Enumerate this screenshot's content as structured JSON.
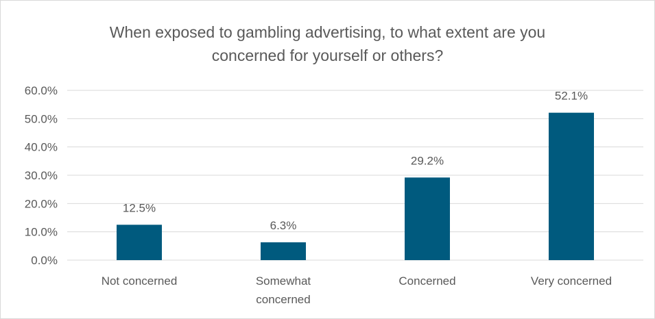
{
  "chart_data": {
    "type": "bar",
    "title_lines": [
      "When exposed to gambling advertising, to what extent are you",
      "concerned for yourself or others?"
    ],
    "categories": [
      [
        "Not concerned"
      ],
      [
        "Somewhat",
        "concerned"
      ],
      [
        "Concerned"
      ],
      [
        "Very concerned"
      ]
    ],
    "values": [
      12.5,
      6.3,
      29.2,
      52.1
    ],
    "data_labels": [
      "12.5%",
      "6.3%",
      "29.2%",
      "52.1%"
    ],
    "y_ticks": [
      "0.0%",
      "10.0%",
      "20.0%",
      "30.0%",
      "40.0%",
      "50.0%",
      "60.0%"
    ],
    "ylim": [
      0,
      60
    ],
    "y_tick_values": [
      0,
      10,
      20,
      30,
      40,
      50,
      60
    ],
    "grid": true,
    "legend": "none",
    "bar_color": "#005a7e",
    "grid_color": "#d9d9d9",
    "xlabel": "",
    "ylabel": ""
  }
}
